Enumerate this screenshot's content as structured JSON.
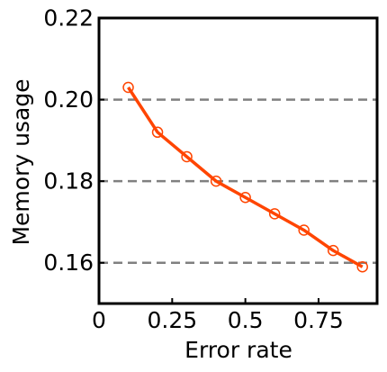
{
  "chart_data": {
    "type": "line",
    "title": "",
    "xlabel": "Error rate",
    "ylabel": "Memory usage",
    "xlim": [
      0,
      0.95
    ],
    "ylim": [
      0.15,
      0.22
    ],
    "xticks": [
      0,
      0.25,
      0.5,
      0.75
    ],
    "xtick_labels": [
      "0",
      "0.25",
      "0.5",
      "0.75"
    ],
    "yticks": [
      0.16,
      0.18,
      0.2,
      0.22
    ],
    "ytick_labels": [
      "0.16",
      "0.18",
      "0.20",
      "0.22"
    ],
    "grid": "horizontal dashed at 0.16, 0.18, 0.20",
    "legend": "none",
    "colors": {
      "series": "#ff4500",
      "grid": "#808080",
      "axes": "#000000"
    },
    "series": [
      {
        "marker": "open-circle",
        "x": [
          0.1,
          0.2,
          0.3,
          0.4,
          0.5,
          0.6,
          0.7,
          0.8,
          0.9
        ],
        "y": [
          0.203,
          0.192,
          0.186,
          0.18,
          0.176,
          0.172,
          0.168,
          0.163,
          0.159
        ]
      }
    ]
  }
}
